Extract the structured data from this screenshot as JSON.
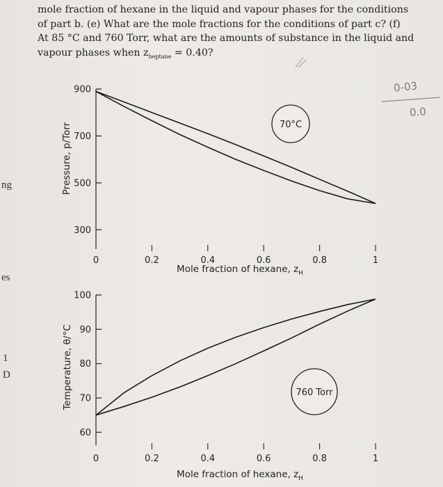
{
  "question": {
    "lines": [
      "mole fraction of hexane in the liquid and vapour phases for the conditions",
      "of part b. (e) What are the mole fractions for the conditions of part c? (f)",
      "At 85 °C and 760 Torr, what are the amounts of substance in the liquid and",
      "vapour phases when z"
    ],
    "subscript": "heptane",
    "tail": " = 0.40?"
  },
  "margin": {
    "left1": "ng",
    "left2": "es",
    "left3": "1",
    "left4": "D"
  },
  "handwriting": {
    "top_right_1": "0-03",
    "top_right_2": "0.0"
  },
  "chart_data": [
    {
      "type": "line",
      "title": "",
      "xlabel": "Mole fraction of hexane, z",
      "xlabel_sub": "H",
      "ylabel": "Pressure, p/Torr",
      "xlim": [
        0,
        1
      ],
      "ylim": [
        200,
        900
      ],
      "x_ticks": [
        "0",
        "0.2",
        "0.4",
        "0.6",
        "0.8",
        "1"
      ],
      "y_ticks": [
        "300",
        "500",
        "700",
        "900"
      ],
      "y_tick_values": [
        300,
        500,
        700,
        900
      ],
      "annotation": "70°C",
      "series": [
        {
          "x": [
            0,
            0.1,
            0.2,
            0.3,
            0.4,
            0.5,
            0.6,
            0.7,
            0.8,
            0.9,
            1.0
          ],
          "values": [
            890,
            845,
            800,
            755,
            710,
            663,
            615,
            566,
            515,
            465,
            412
          ]
        },
        {
          "x": [
            0,
            0.1,
            0.2,
            0.3,
            0.4,
            0.5,
            0.6,
            0.7,
            0.8,
            0.9,
            1.0
          ],
          "values": [
            890,
            826,
            765,
            706,
            652,
            600,
            553,
            508,
            467,
            432,
            412
          ]
        }
      ]
    },
    {
      "type": "line",
      "title": "",
      "xlabel": "Mole fraction of hexane, z",
      "xlabel_sub": "H",
      "ylabel": "Temperature, θ/°C",
      "xlim": [
        0,
        1
      ],
      "ylim": [
        55,
        100
      ],
      "x_ticks": [
        "0",
        "0.2",
        "0.4",
        "0.6",
        "0.8",
        "1"
      ],
      "y_ticks": [
        "60",
        "70",
        "80",
        "90",
        "100"
      ],
      "y_tick_values": [
        60,
        70,
        80,
        90,
        100
      ],
      "annotation": "760 Torr",
      "series": [
        {
          "x": [
            0,
            0.1,
            0.2,
            0.3,
            0.4,
            0.5,
            0.6,
            0.7,
            0.8,
            0.9,
            1.0
          ],
          "values": [
            65,
            71.5,
            76.5,
            80.8,
            84.5,
            87.7,
            90.5,
            93.0,
            95.2,
            97.2,
            98.8
          ]
        },
        {
          "x": [
            0,
            0.1,
            0.2,
            0.3,
            0.4,
            0.5,
            0.6,
            0.7,
            0.8,
            0.9,
            1.0
          ],
          "values": [
            65,
            67.5,
            70.2,
            73.2,
            76.5,
            80.0,
            83.7,
            87.5,
            91.5,
            95.3,
            98.8
          ]
        }
      ]
    }
  ]
}
